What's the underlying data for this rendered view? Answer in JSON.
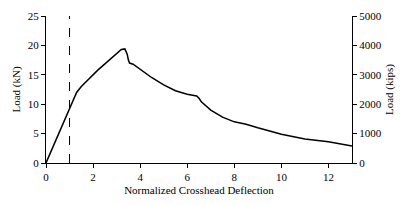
{
  "chart_data": {
    "type": "line",
    "x_label": "Normalized Crosshead Deflection",
    "y_label": "Load (kN)",
    "y2_label": "Load (kips)",
    "xlim": [
      0,
      13
    ],
    "xticks": [
      0,
      2,
      4,
      6,
      8,
      10,
      12
    ],
    "ylim": [
      0,
      25
    ],
    "yticks": [
      0,
      5,
      10,
      15,
      20,
      25
    ],
    "y2lim": [
      0,
      5000
    ],
    "y2ticks": [
      0,
      1000,
      2000,
      3000,
      4000,
      5000
    ],
    "grid": false,
    "series": [
      {
        "color": "#000000",
        "line_style": "solid",
        "x": [
          0,
          1,
          1.3,
          1.5,
          1.8,
          2.2,
          2.6,
          3.0,
          3.2,
          3.35,
          3.45,
          3.5,
          3.55,
          3.7,
          4.0,
          4.5,
          5.0,
          5.5,
          6.0,
          6.4,
          6.5,
          6.6,
          7.0,
          7.5,
          8.0,
          8.5,
          9.0,
          10,
          11,
          12,
          13
        ],
        "values": [
          0,
          9.3,
          12,
          13,
          14.2,
          15.8,
          17.2,
          18.6,
          19.3,
          19.4,
          18.5,
          17.5,
          17.0,
          16.8,
          15.9,
          14.5,
          13.3,
          12.3,
          11.7,
          11.4,
          11.0,
          10.4,
          9.0,
          7.8,
          7.0,
          6.6,
          6.0,
          4.9,
          4.1,
          3.6,
          2.9
        ]
      },
      {
        "color": "#000000",
        "line_style": "dashed",
        "x": [
          1,
          1
        ],
        "values": [
          0,
          25
        ]
      }
    ]
  }
}
